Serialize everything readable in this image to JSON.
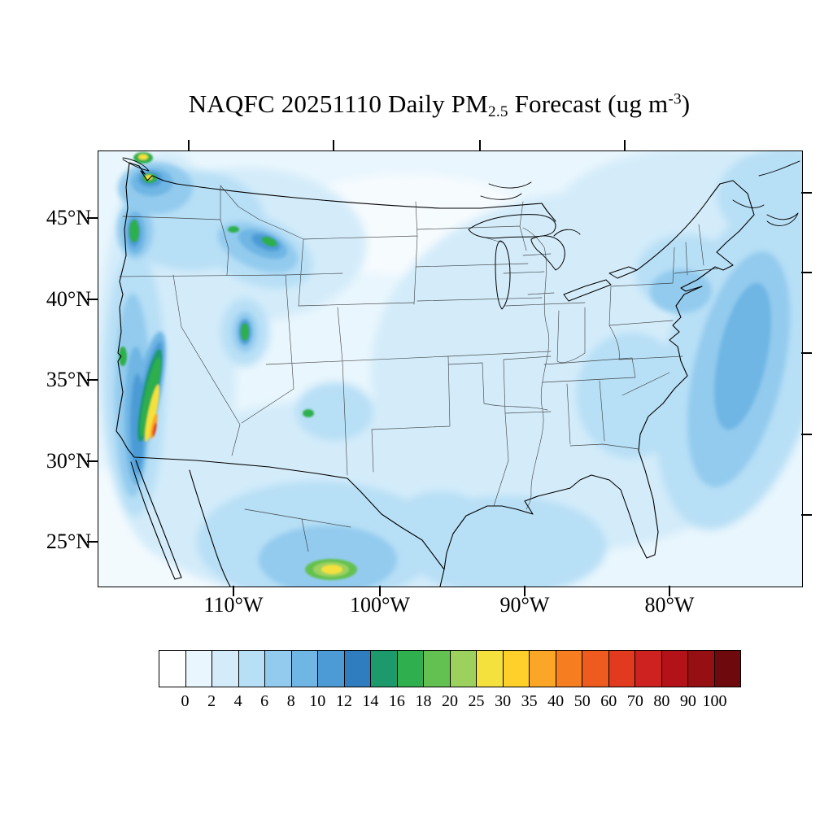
{
  "title": {
    "part1": "NAQFC 20251110 Daily PM",
    "sub": "2.5",
    "part2": " Forecast (ug m",
    "sup": "-3",
    "part3": ")"
  },
  "axes": {
    "lat_labels": [
      "45°N",
      "40°N",
      "35°N",
      "30°N",
      "25°N"
    ],
    "lon_labels": [
      "110°W",
      "100°W",
      "90°W",
      "80°W"
    ]
  },
  "colorbar": {
    "tick_labels": [
      "0",
      "2",
      "4",
      "6",
      "8",
      "10",
      "12",
      "14",
      "16",
      "18",
      "20",
      "25",
      "30",
      "35",
      "40",
      "50",
      "60",
      "70",
      "80",
      "90",
      "100"
    ],
    "cell_colors": [
      "#FFFFFF",
      "#E9F6FD",
      "#D4ECFA",
      "#B7DFF6",
      "#93CBEE",
      "#6FB6E4",
      "#4C9BD6",
      "#2F7CBF",
      "#1D9A6C",
      "#2FAF4E",
      "#63C151",
      "#9CD15E",
      "#F5E13D",
      "#FFD029",
      "#FCA628",
      "#F67E20",
      "#EF5A1E",
      "#E13A1E",
      "#CE2220",
      "#B31218",
      "#950F13",
      "#6E0A0D"
    ]
  },
  "chart_data": {
    "type": "heatmap",
    "title": "NAQFC 20251110 Daily PM2.5 Forecast (ug m-3)",
    "units": "ug m-3",
    "region": "Contiguous United States with adjacent Canada, Mexico and offshore waters (Lambert conformal view)",
    "x_axis": {
      "label_type": "longitude",
      "ticks": [
        "110°W",
        "100°W",
        "90°W",
        "80°W"
      ]
    },
    "y_axis": {
      "label_type": "latitude",
      "ticks": [
        "45°N",
        "40°N",
        "35°N",
        "30°N",
        "25°N"
      ]
    },
    "contour_levels": [
      0,
      2,
      4,
      6,
      8,
      10,
      12,
      14,
      16,
      18,
      20,
      25,
      30,
      35,
      40,
      50,
      60,
      70,
      80,
      90,
      100
    ],
    "palette": [
      "#FFFFFF",
      "#E9F6FD",
      "#D4ECFA",
      "#B7DFF6",
      "#93CBEE",
      "#6FB6E4",
      "#4C9BD6",
      "#2F7CBF",
      "#1D9A6C",
      "#2FAF4E",
      "#63C151",
      "#9CD15E",
      "#F5E13D",
      "#FFD029",
      "#FCA628",
      "#F67E20",
      "#EF5A1E",
      "#E13A1E",
      "#CE2220",
      "#B31218",
      "#950F13",
      "#6E0A0D"
    ],
    "legend_position": "bottom",
    "grid": false,
    "summary": "Most of the domain is 0-6 ug/m3. Values of 6-12 appear along the Atlantic offshore waters from New England to Florida and around the urban Northeast. Localized maxima of 12-60+ occur over California's Central Valley and coastal ranges, the Puget Sound / Seattle area, western Oregon, central Idaho, northern Utah (Salt Lake area), a small spot in Colorado, and interior central Mexico near the bottom edge of the map."
  }
}
